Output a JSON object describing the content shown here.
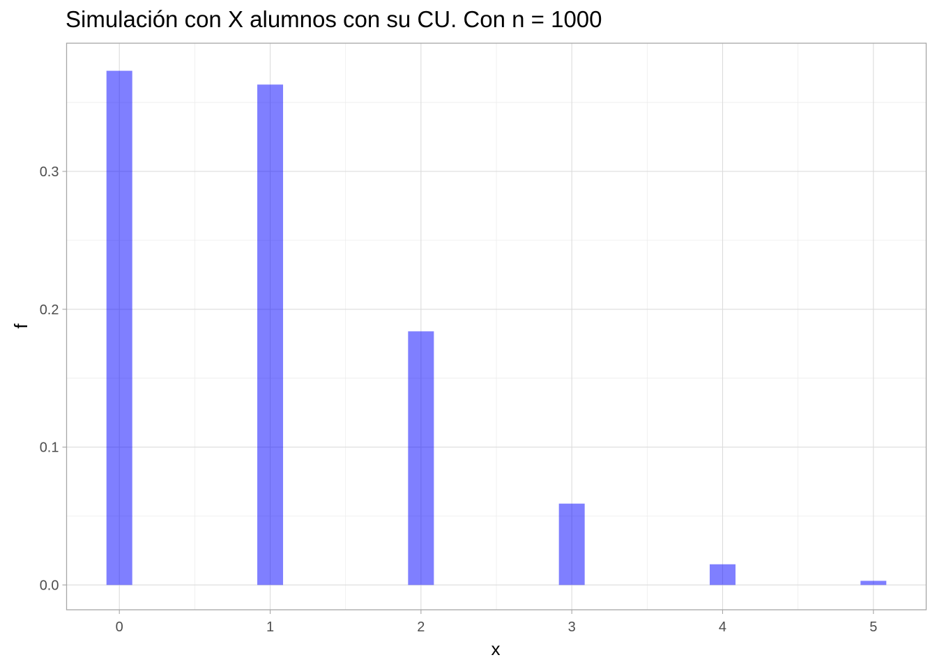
{
  "chart_data": {
    "type": "bar",
    "title": "Simulación con X alumnos con su CU. Con n = 1000",
    "xlabel": "x",
    "ylabel": "f",
    "bar_color": "#0000ff",
    "bar_opacity": 0.5,
    "xlim": [
      -0.35,
      5.35
    ],
    "ylim": [
      -0.018,
      0.393
    ],
    "x_ticks": [
      0,
      1,
      2,
      3,
      4,
      5
    ],
    "x_tick_labels": [
      "0",
      "1",
      "2",
      "3",
      "4",
      "5"
    ],
    "y_ticks": [
      0.0,
      0.1,
      0.2,
      0.3
    ],
    "y_tick_labels": [
      "0.0",
      "0.1",
      "0.2",
      "0.3"
    ],
    "grid": true,
    "bars": [
      {
        "x": 0,
        "value": 0.373
      },
      {
        "x": 1,
        "value": 0.363
      },
      {
        "x": 2,
        "value": 0.184
      },
      {
        "x": 3,
        "value": 0.059
      },
      {
        "x": 4,
        "value": 0.015
      },
      {
        "x": 5,
        "value": 0.003
      }
    ]
  }
}
